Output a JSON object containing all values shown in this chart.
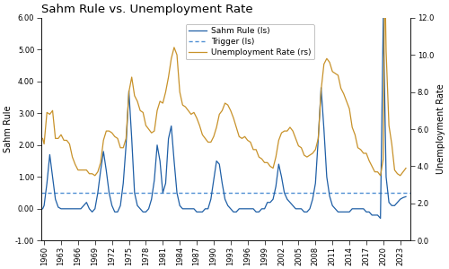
{
  "title": "Sahm Rule vs. Unemployment Rate",
  "ylabel_left": "Sahm Rule",
  "ylabel_right": "Unemployment Rate",
  "trigger_value": 0.5,
  "ylim_left": [
    -1.0,
    6.0
  ],
  "ylim_right": [
    0.0,
    12.0
  ],
  "line_color_sahm": "#1F5FA6",
  "line_color_unemp": "#C8922A",
  "trigger_color": "#4F8FD4",
  "bg_color": "#FFFFFF",
  "title_fontsize": 9.5,
  "axis_fontsize": 7,
  "tick_fontsize": 6,
  "legend_fontsize": 6.5,
  "xtick_labels": [
    "1960",
    "1963",
    "1966",
    "1969",
    "1972",
    "1975",
    "1978",
    "1981",
    "1984",
    "1987",
    "1990",
    "1993",
    "1996",
    "1999",
    "2002",
    "2005",
    "2008",
    "2011",
    "2014",
    "2017",
    "2020",
    "2023"
  ],
  "sahm_rule_years": [
    1959.75,
    1960.0,
    1960.5,
    1961.0,
    1961.5,
    1962.0,
    1962.5,
    1963.0,
    1963.5,
    1964.0,
    1964.5,
    1965.0,
    1965.5,
    1966.0,
    1966.5,
    1967.0,
    1967.5,
    1968.0,
    1968.5,
    1969.0,
    1969.5,
    1970.0,
    1970.5,
    1971.0,
    1971.5,
    1972.0,
    1972.5,
    1973.0,
    1973.5,
    1974.0,
    1974.5,
    1975.0,
    1975.5,
    1976.0,
    1976.5,
    1977.0,
    1977.5,
    1978.0,
    1978.5,
    1979.0,
    1979.5,
    1980.0,
    1980.5,
    1981.0,
    1981.5,
    1982.0,
    1982.5,
    1983.0,
    1983.5,
    1984.0,
    1984.5,
    1985.0,
    1985.5,
    1986.0,
    1986.5,
    1987.0,
    1987.5,
    1988.0,
    1988.5,
    1989.0,
    1989.5,
    1990.0,
    1990.5,
    1991.0,
    1991.5,
    1992.0,
    1992.5,
    1993.0,
    1993.5,
    1994.0,
    1994.5,
    1995.0,
    1995.5,
    1996.0,
    1996.5,
    1997.0,
    1997.5,
    1998.0,
    1998.5,
    1999.0,
    1999.5,
    2000.0,
    2000.5,
    2001.0,
    2001.5,
    2002.0,
    2002.5,
    2003.0,
    2003.5,
    2004.0,
    2004.5,
    2005.0,
    2005.5,
    2006.0,
    2006.5,
    2007.0,
    2007.5,
    2008.0,
    2008.5,
    2009.0,
    2009.5,
    2010.0,
    2010.5,
    2011.0,
    2011.5,
    2012.0,
    2012.5,
    2013.0,
    2013.5,
    2014.0,
    2014.5,
    2015.0,
    2015.5,
    2016.0,
    2016.5,
    2017.0,
    2017.5,
    2018.0,
    2018.5,
    2019.0,
    2019.5,
    2020.0,
    2020.25,
    2020.5,
    2021.0,
    2021.5,
    2022.0,
    2022.5,
    2023.0,
    2023.5,
    2024.0
  ],
  "sahm_rule": [
    0.0,
    0.1,
    0.8,
    1.7,
    1.0,
    0.3,
    0.05,
    0.0,
    0.0,
    0.0,
    0.0,
    0.0,
    0.0,
    0.0,
    0.0,
    0.1,
    0.2,
    0.0,
    -0.1,
    0.0,
    0.5,
    1.2,
    1.8,
    1.2,
    0.5,
    0.1,
    -0.1,
    -0.1,
    0.1,
    0.8,
    2.0,
    3.7,
    2.2,
    0.5,
    0.1,
    0.0,
    -0.1,
    -0.1,
    0.0,
    0.3,
    0.9,
    2.0,
    1.5,
    0.5,
    0.8,
    2.2,
    2.6,
    1.5,
    0.5,
    0.1,
    0.0,
    0.0,
    0.0,
    0.0,
    0.0,
    -0.1,
    -0.1,
    -0.1,
    0.0,
    0.0,
    0.3,
    0.9,
    1.5,
    1.4,
    0.8,
    0.3,
    0.1,
    0.0,
    -0.1,
    -0.1,
    0.0,
    0.0,
    0.0,
    0.0,
    0.0,
    0.0,
    -0.1,
    -0.1,
    0.0,
    0.0,
    0.2,
    0.2,
    0.3,
    0.7,
    1.4,
    1.0,
    0.5,
    0.3,
    0.2,
    0.1,
    0.0,
    0.0,
    0.0,
    -0.1,
    -0.1,
    0.0,
    0.3,
    0.8,
    2.2,
    3.8,
    2.5,
    1.0,
    0.4,
    0.1,
    0.0,
    -0.1,
    -0.1,
    -0.1,
    -0.1,
    -0.1,
    0.0,
    0.0,
    0.0,
    0.0,
    0.0,
    -0.1,
    -0.1,
    -0.2,
    -0.2,
    -0.2,
    -0.3,
    6.0,
    3.5,
    1.0,
    0.2,
    0.1,
    0.1,
    0.2,
    0.3,
    0.35,
    0.38
  ],
  "unemp_years": [
    1959.75,
    1960.0,
    1960.5,
    1961.0,
    1961.5,
    1962.0,
    1962.5,
    1963.0,
    1963.5,
    1964.0,
    1964.5,
    1965.0,
    1965.5,
    1966.0,
    1966.5,
    1967.0,
    1967.5,
    1968.0,
    1968.5,
    1969.0,
    1969.5,
    1970.0,
    1970.5,
    1971.0,
    1971.5,
    1972.0,
    1972.5,
    1973.0,
    1973.5,
    1974.0,
    1974.5,
    1975.0,
    1975.5,
    1976.0,
    1976.5,
    1977.0,
    1977.5,
    1978.0,
    1978.5,
    1979.0,
    1979.5,
    1980.0,
    1980.5,
    1981.0,
    1981.5,
    1982.0,
    1982.5,
    1983.0,
    1983.5,
    1984.0,
    1984.5,
    1985.0,
    1985.5,
    1986.0,
    1986.5,
    1987.0,
    1987.5,
    1988.0,
    1988.5,
    1989.0,
    1989.5,
    1990.0,
    1990.5,
    1991.0,
    1991.5,
    1992.0,
    1992.5,
    1993.0,
    1993.5,
    1994.0,
    1994.5,
    1995.0,
    1995.5,
    1996.0,
    1996.5,
    1997.0,
    1997.5,
    1998.0,
    1998.5,
    1999.0,
    1999.5,
    2000.0,
    2000.5,
    2001.0,
    2001.5,
    2002.0,
    2002.5,
    2003.0,
    2003.5,
    2004.0,
    2004.5,
    2005.0,
    2005.5,
    2006.0,
    2006.5,
    2007.0,
    2007.5,
    2008.0,
    2008.5,
    2009.0,
    2009.5,
    2010.0,
    2010.5,
    2011.0,
    2011.5,
    2012.0,
    2012.5,
    2013.0,
    2013.5,
    2014.0,
    2014.5,
    2015.0,
    2015.5,
    2016.0,
    2016.5,
    2017.0,
    2017.5,
    2018.0,
    2018.5,
    2019.0,
    2019.5,
    2020.0,
    2020.25,
    2020.5,
    2021.0,
    2021.5,
    2022.0,
    2022.5,
    2023.0,
    2023.5,
    2024.0
  ],
  "unemp_rate": [
    5.5,
    5.2,
    6.9,
    6.8,
    7.0,
    5.5,
    5.5,
    5.7,
    5.4,
    5.4,
    5.2,
    4.5,
    4.1,
    3.8,
    3.8,
    3.8,
    3.8,
    3.6,
    3.6,
    3.5,
    3.7,
    4.2,
    5.4,
    5.9,
    5.9,
    5.8,
    5.6,
    5.5,
    5.0,
    5.0,
    5.5,
    8.0,
    8.8,
    7.8,
    7.5,
    7.0,
    6.9,
    6.2,
    6.0,
    5.8,
    5.9,
    7.0,
    7.5,
    7.4,
    8.0,
    8.8,
    9.8,
    10.4,
    10.0,
    8.0,
    7.3,
    7.2,
    7.0,
    6.8,
    6.9,
    6.6,
    6.2,
    5.7,
    5.5,
    5.3,
    5.3,
    5.6,
    6.1,
    6.8,
    7.0,
    7.4,
    7.3,
    7.0,
    6.6,
    6.1,
    5.6,
    5.5,
    5.6,
    5.4,
    5.3,
    4.9,
    4.9,
    4.5,
    4.4,
    4.2,
    4.2,
    4.0,
    3.9,
    4.5,
    5.4,
    5.8,
    5.9,
    5.9,
    6.1,
    5.9,
    5.5,
    5.1,
    5.0,
    4.6,
    4.5,
    4.6,
    4.7,
    4.9,
    5.5,
    8.1,
    9.5,
    9.8,
    9.6,
    9.1,
    9.0,
    8.9,
    8.2,
    7.9,
    7.5,
    7.1,
    6.1,
    5.7,
    5.0,
    4.9,
    4.7,
    4.7,
    4.3,
    4.0,
    3.7,
    3.7,
    3.5,
    4.4,
    14.7,
    10.2,
    6.2,
    5.2,
    3.8,
    3.6,
    3.5,
    3.7,
    3.9
  ]
}
